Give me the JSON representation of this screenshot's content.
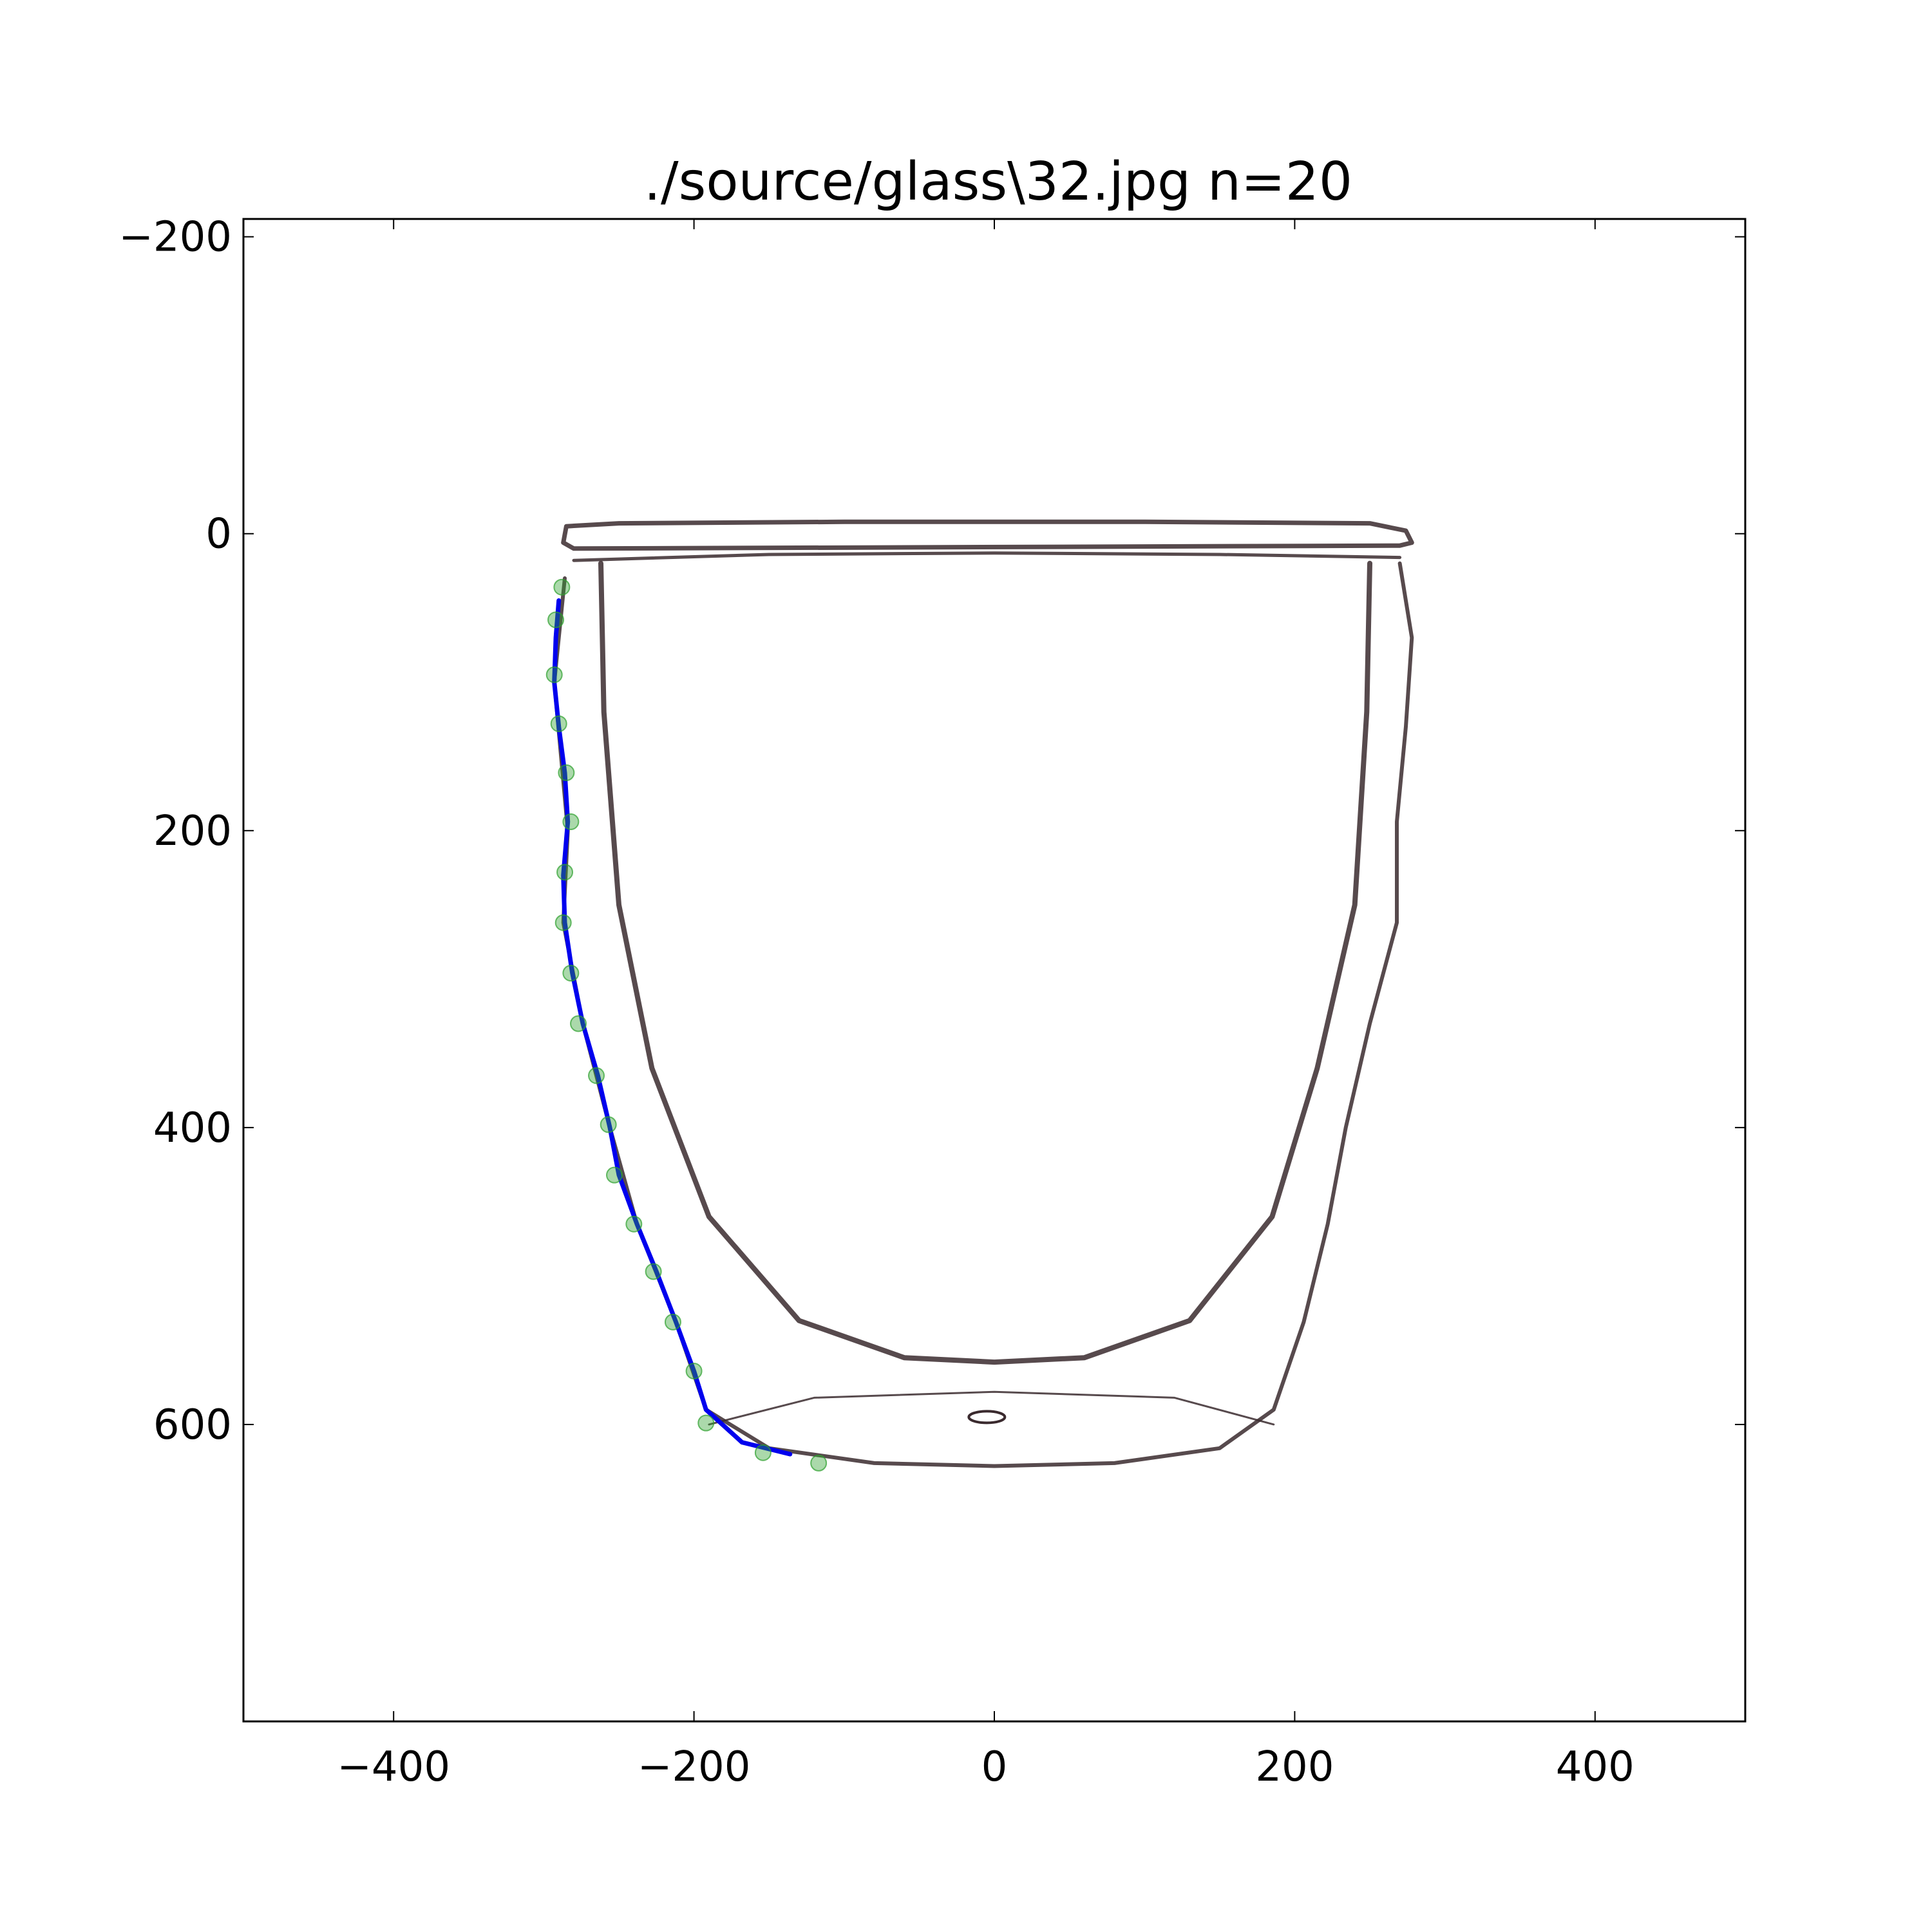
{
  "chart_data": {
    "type": "scatter",
    "title": "./source/glass\\32.jpg n=20",
    "xlabel": "",
    "ylabel": "",
    "xlim": [
      -500,
      500
    ],
    "ylim": [
      800,
      -212
    ],
    "y_inverted": true,
    "grid": false,
    "xticks": [
      -400,
      -200,
      0,
      200,
      400
    ],
    "xtick_labels": [
      "−400",
      "−200",
      "0",
      "200",
      "400"
    ],
    "yticks": [
      -200,
      0,
      200,
      400,
      600
    ],
    "ytick_labels": [
      "−200",
      "0",
      "200",
      "400",
      "600"
    ],
    "background_image": "photo of a double-walled drinking glass",
    "colors": {
      "points": "#2ca02c",
      "curve": "#0000ee",
      "glass_outline": "#3a2a2e"
    },
    "series": [
      {
        "kind": "points",
        "x": [
          -288,
          -292,
          -293,
          -290,
          -285,
          -282,
          -286,
          -287,
          -282,
          -277,
          -265,
          -257,
          -253,
          -240,
          -227,
          -214,
          -200,
          -192,
          -154,
          -117
        ],
        "y": [
          36,
          58,
          95,
          128,
          161,
          194,
          228,
          262,
          296,
          330,
          365,
          398,
          432,
          465,
          497,
          531,
          564,
          599,
          619,
          626
        ]
      },
      {
        "kind": "line",
        "x": [
          -290,
          -292,
          -293,
          -290,
          -286,
          -284,
          -287,
          -286,
          -281,
          -274,
          -264,
          -256,
          -250,
          -238,
          -225,
          -212,
          -200,
          -192,
          -168,
          -136
        ],
        "y": [
          45,
          70,
          100,
          130,
          161,
          194,
          230,
          262,
          296,
          330,
          365,
          400,
          432,
          465,
          497,
          531,
          564,
          590,
          612,
          620
        ]
      }
    ]
  }
}
